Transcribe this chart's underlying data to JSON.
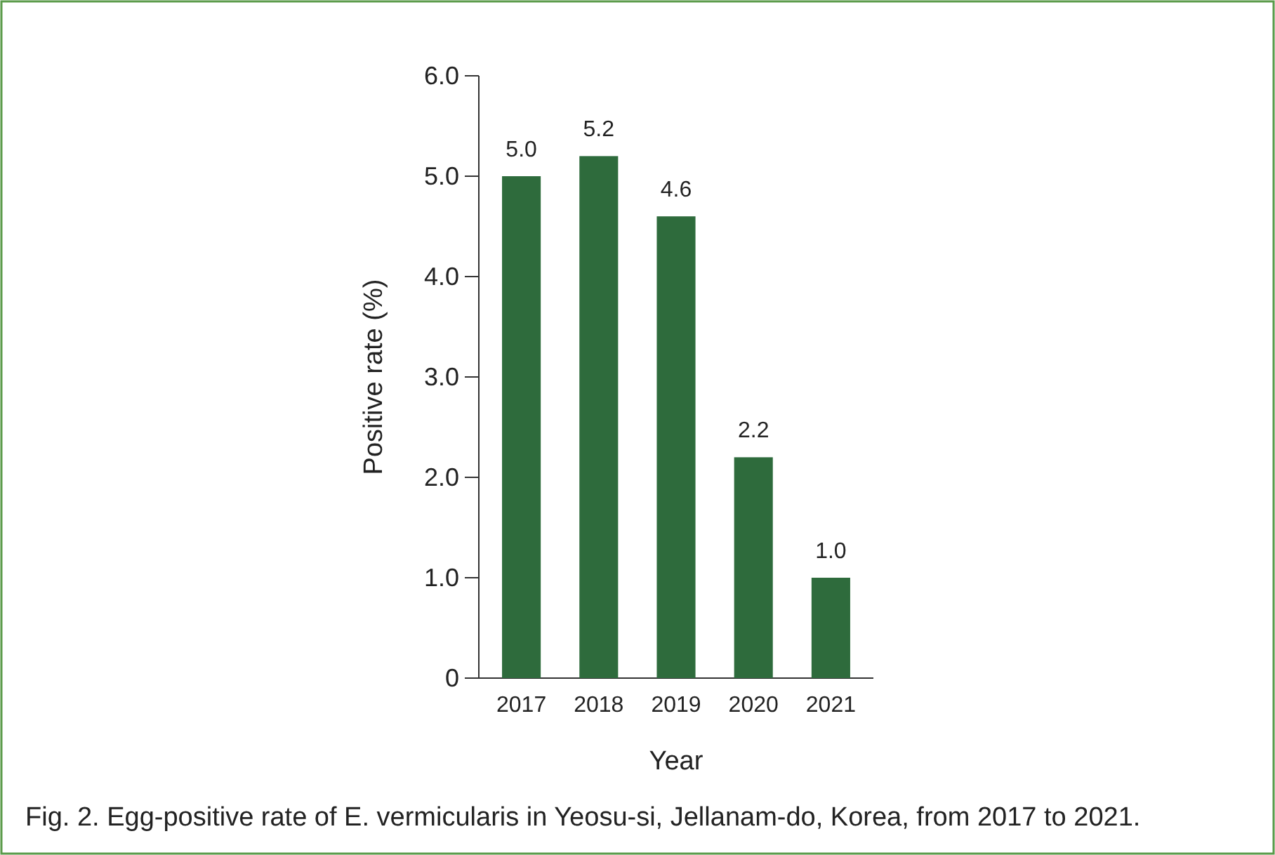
{
  "chart_data": {
    "type": "bar",
    "xlabel": "Year",
    "ylabel": "Positive rate (%)",
    "categories": [
      "2017",
      "2018",
      "2019",
      "2020",
      "2021"
    ],
    "values": [
      5.0,
      5.2,
      4.6,
      2.2,
      1.0
    ],
    "color": "#2e6b3c",
    "ylim": [
      0,
      6
    ],
    "yticks": [
      0,
      {
        "value": 1,
        "label": "1.0"
      },
      {
        "value": 2,
        "label": "2.0"
      },
      {
        "value": 3,
        "label": "3.0"
      },
      {
        "value": 4,
        "label": "4.0"
      },
      {
        "value": 5,
        "label": "5.0"
      },
      {
        "value": 6,
        "label": "6.0"
      }
    ],
    "data_labels": true,
    "value_labels": [
      "5.0",
      "5.2",
      "4.6",
      "2.2",
      "1.0"
    ],
    "annotations": [
      "Fig. 2. Egg-positive rate of E. vermicularis in Yeosu-si, Jellanam-do, Korea, from 2017 to 2021."
    ]
  }
}
